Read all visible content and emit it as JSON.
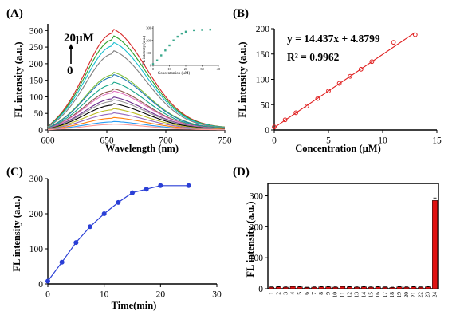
{
  "panels": [
    "(A)",
    "(B)",
    "(C)",
    "(D)"
  ],
  "chart_data": [
    {
      "panel": "(A)",
      "type": "line",
      "xlabel": "Wavelength (nm)",
      "ylabel": "FL intensity (a.u.)",
      "xlim": [
        600,
        750
      ],
      "ylim": [
        0,
        320
      ],
      "xticks": [
        600,
        650,
        700,
        750
      ],
      "yticks": [
        0,
        50,
        100,
        150,
        200,
        250,
        300
      ],
      "peak_x": 655,
      "annotations": [
        "20µM",
        "0"
      ],
      "series": [
        {
          "color": "#d62728",
          "values": [
            62,
            305
          ]
        },
        {
          "color": "#2ca02c",
          "values": [
            60,
            285
          ]
        },
        {
          "color": "#17becf",
          "values": [
            55,
            265
          ]
        },
        {
          "color": "#7f7f7f",
          "values": [
            48,
            240
          ]
        },
        {
          "color": "#7fbf3f",
          "values": [
            42,
            175
          ]
        },
        {
          "color": "#1f77b4",
          "values": [
            40,
            168
          ]
        },
        {
          "color": "#17a589",
          "values": [
            36,
            145
          ]
        },
        {
          "color": "#8c564b",
          "values": [
            33,
            125
          ]
        },
        {
          "color": "#e377c2",
          "values": [
            30,
            118
          ]
        },
        {
          "color": "#6b2e8f",
          "values": [
            28,
            100
          ]
        },
        {
          "color": "#999999",
          "values": [
            26,
            92
          ]
        },
        {
          "color": "#000000",
          "values": [
            24,
            80
          ]
        },
        {
          "color": "#bcbd22",
          "values": [
            20,
            65
          ]
        },
        {
          "color": "#9467bd",
          "values": [
            16,
            52
          ]
        },
        {
          "color": "#ff7f0e",
          "values": [
            12,
            38
          ]
        },
        {
          "color": "#2a9df4",
          "values": [
            8,
            26
          ]
        },
        {
          "color": "#ff9896",
          "values": [
            5,
            18
          ]
        }
      ],
      "inset": {
        "type": "scatter",
        "xlabel": "Concentration (µM)",
        "ylabel": "FL intensity (a.u.)",
        "xlim": [
          0,
          40
        ],
        "ylim": [
          0,
          320
        ],
        "xticks": [
          0,
          10,
          20,
          30,
          40
        ],
        "yticks": [
          0,
          100,
          200,
          300
        ],
        "x": [
          0,
          2.5,
          5,
          7.5,
          10,
          12.5,
          15,
          17.5,
          20,
          25,
          30,
          35
        ],
        "y": [
          10,
          40,
          80,
          120,
          160,
          200,
          230,
          255,
          270,
          282,
          285,
          287
        ]
      }
    },
    {
      "panel": "(B)",
      "type": "scatter",
      "xlabel": "Concentration (µM)",
      "ylabel": "FL intensity (a.u.)",
      "xlim": [
        0,
        15
      ],
      "ylim": [
        0,
        200
      ],
      "xticks": [
        0,
        5,
        10,
        15
      ],
      "yticks": [
        0,
        50,
        100,
        150,
        200
      ],
      "equation": "y = 14.437x + 4.8799",
      "r2": "R² = 0.9962",
      "fit": {
        "slope": 14.437,
        "intercept": 4.8799,
        "x_range": [
          0,
          13
        ]
      },
      "x": [
        0,
        1,
        2,
        3,
        4,
        5,
        6,
        7,
        8,
        9,
        11,
        13
      ],
      "y": [
        6,
        20,
        34,
        47,
        62,
        77,
        92,
        106,
        120,
        135,
        173,
        188
      ]
    },
    {
      "panel": "(C)",
      "type": "line",
      "xlabel": "Time(min)",
      "ylabel": "FL intensity (a.u.)",
      "xlim": [
        0,
        30
      ],
      "ylim": [
        0,
        300
      ],
      "xticks": [
        0,
        10,
        20,
        30
      ],
      "yticks": [
        0,
        100,
        200,
        300
      ],
      "x": [
        0,
        2.5,
        5,
        7.5,
        10,
        12.5,
        15,
        17.5,
        20,
        25
      ],
      "y": [
        8,
        62,
        118,
        163,
        200,
        232,
        260,
        270,
        280,
        280
      ]
    },
    {
      "panel": "(D)",
      "type": "bar",
      "xlabel": "",
      "ylabel": "FL intensity (a.u.)",
      "ylim": [
        0,
        340
      ],
      "yticks": [
        0,
        100,
        200,
        300
      ],
      "categories": [
        "1",
        "2",
        "3",
        "4",
        "5",
        "6",
        "7",
        "8",
        "9",
        "10",
        "11",
        "12",
        "13",
        "14",
        "15",
        "16",
        "17",
        "18",
        "19",
        "20",
        "21",
        "22",
        "23",
        "24"
      ],
      "values": [
        5,
        6,
        5,
        7,
        6,
        4,
        5,
        6,
        6,
        5,
        7,
        6,
        5,
        6,
        5,
        6,
        5,
        4,
        6,
        5,
        6,
        5,
        6,
        285
      ],
      "errors": [
        1,
        1,
        1,
        2,
        1,
        1,
        1,
        1,
        1,
        1,
        2,
        1,
        1,
        1,
        1,
        1,
        1,
        1,
        1,
        1,
        1,
        1,
        1,
        8
      ],
      "bar_color": "#e01010"
    }
  ]
}
